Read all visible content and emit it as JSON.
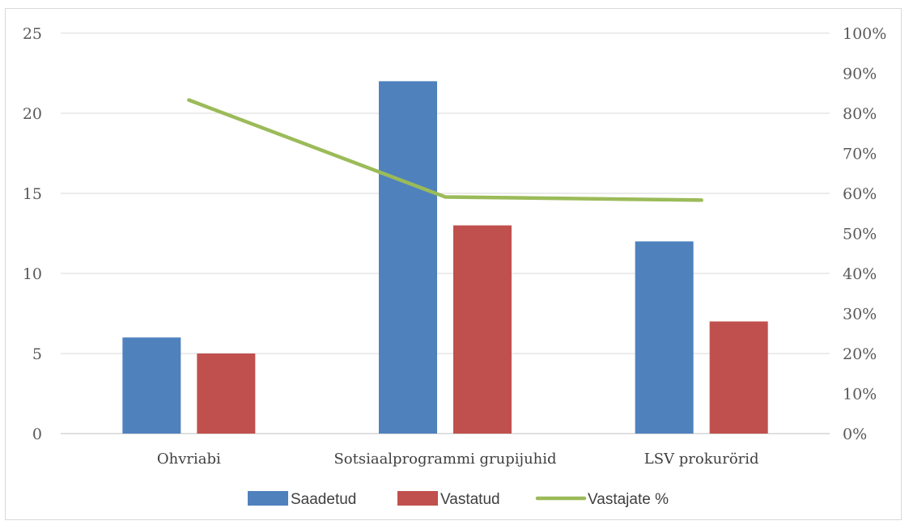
{
  "chart_data": {
    "type": "bar",
    "categories": [
      "Ohvriabi",
      "Sotsiaalprogrammi grupijuhid",
      "LSV prokurörid"
    ],
    "series": [
      {
        "name": "Saadetud",
        "type": "bar",
        "axis": "left",
        "color": "#4f81bd",
        "values": [
          6,
          22,
          12
        ]
      },
      {
        "name": "Vastatud",
        "type": "bar",
        "axis": "left",
        "color": "#c0504d",
        "values": [
          5,
          13,
          7
        ]
      },
      {
        "name": "Vastajate %",
        "type": "line",
        "axis": "right",
        "color": "#9bbb59",
        "values": [
          0.833,
          0.591,
          0.583
        ]
      }
    ],
    "left_axis": {
      "min": 0,
      "max": 25,
      "step": 5,
      "ticks": [
        "0",
        "5",
        "10",
        "15",
        "20",
        "25"
      ]
    },
    "right_axis": {
      "min": 0,
      "max": 1,
      "step": 0.1,
      "ticks": [
        "0%",
        "10%",
        "20%",
        "30%",
        "40%",
        "50%",
        "60%",
        "70%",
        "80%",
        "90%",
        "100%"
      ]
    },
    "grid": true,
    "legend_position": "bottom"
  }
}
